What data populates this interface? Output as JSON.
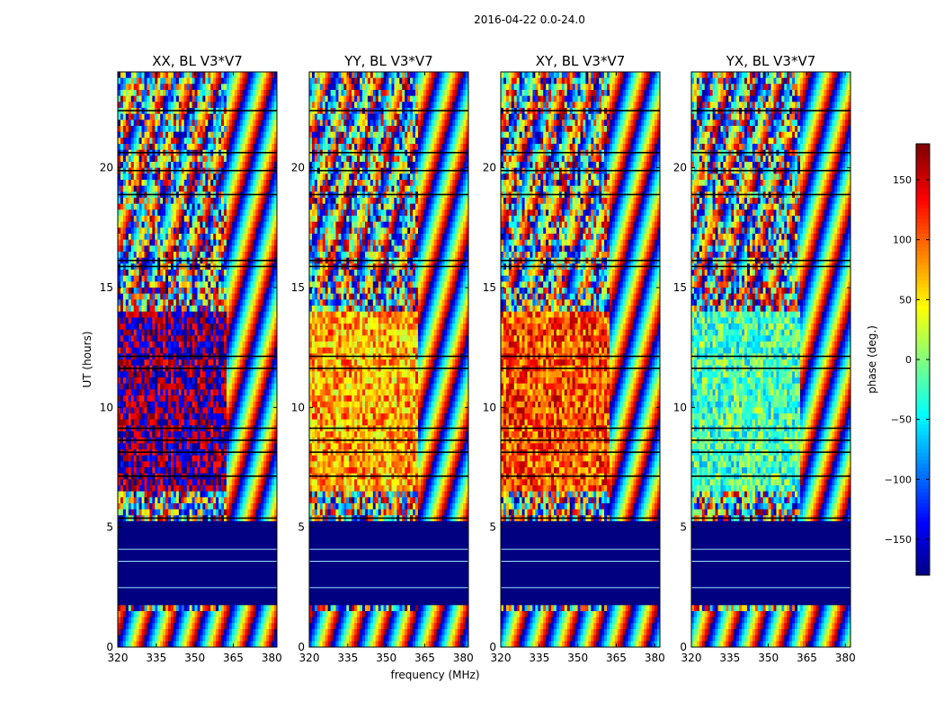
{
  "figure": {
    "suptitle": "2016-04-22 0.0-24.0"
  },
  "chart_data": {
    "type": "heatmap",
    "xlabel": "frequency (MHz)",
    "ylabel": "UT (hours)",
    "xlim": [
      320,
      382
    ],
    "ylim": [
      0,
      24
    ],
    "xticks": [
      320,
      335,
      350,
      365,
      380
    ],
    "yticks": [
      0,
      5,
      10,
      15,
      20
    ],
    "colormap": "jet",
    "colorbar": {
      "label": "phase (deg.)",
      "range": [
        -180,
        180
      ],
      "ticks": [
        -150,
        -100,
        -50,
        0,
        50,
        100,
        150
      ],
      "tick_labels": [
        "−150",
        "−100",
        "−50",
        "0",
        "50",
        "100",
        "150"
      ]
    },
    "panels": [
      {
        "title": "XX, BL V3*V7",
        "night_phase": -180,
        "flag_color": "#000080"
      },
      {
        "title": "YY, BL V3*V7",
        "night_phase": 75,
        "flag_color": "#000080"
      },
      {
        "title": "XY, BL V3*V7",
        "night_phase": 110,
        "flag_color": "#000080"
      },
      {
        "title": "YX, BL V3*V7",
        "night_phase": -20,
        "flag_color": "#000080"
      }
    ],
    "flagged_interval_ut": [
      1.8,
      5.3
    ],
    "grid": false
  }
}
